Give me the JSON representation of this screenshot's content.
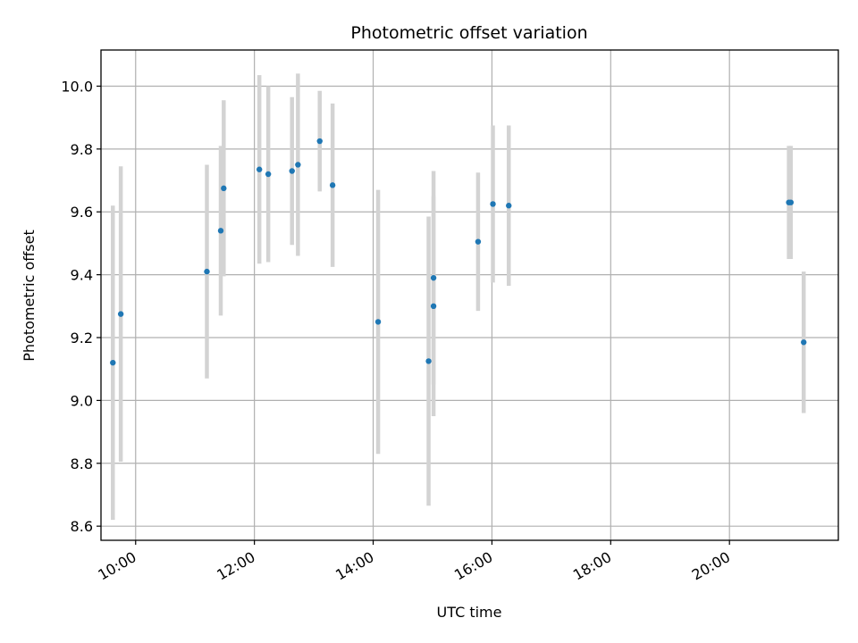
{
  "chart_data": {
    "type": "scatter",
    "title": "Photometric offset variation",
    "xlabel": "UTC time",
    "ylabel": "Photometric offset",
    "xlim": [
      "09:25",
      "21:50"
    ],
    "ylim": [
      8.555,
      10.115
    ],
    "x_ticks": [
      "10:00",
      "12:00",
      "14:00",
      "16:00",
      "18:00",
      "20:00"
    ],
    "y_ticks": [
      "8.6",
      "8.8",
      "9.0",
      "9.2",
      "9.4",
      "9.6",
      "9.8",
      "10.0"
    ],
    "grid": true,
    "legend": "none",
    "colors": {
      "point": "#1f77b4",
      "errorbar": "#d3d3d3",
      "grid": "#b0b0b0"
    },
    "points": [
      {
        "x": "09:37",
        "y": 9.12,
        "yerr": 0.5
      },
      {
        "x": "09:45",
        "y": 9.275,
        "yerr": 0.47
      },
      {
        "x": "11:12",
        "y": 9.41,
        "yerr": 0.34
      },
      {
        "x": "11:26",
        "y": 9.54,
        "yerr": 0.27
      },
      {
        "x": "11:29",
        "y": 9.675,
        "yerr": 0.28
      },
      {
        "x": "12:05",
        "y": 9.735,
        "yerr": 0.3
      },
      {
        "x": "12:14",
        "y": 9.72,
        "yerr": 0.28
      },
      {
        "x": "12:38",
        "y": 9.73,
        "yerr": 0.235
      },
      {
        "x": "12:44",
        "y": 9.75,
        "yerr": 0.29
      },
      {
        "x": "13:06",
        "y": 9.825,
        "yerr": 0.16
      },
      {
        "x": "13:19",
        "y": 9.685,
        "yerr": 0.26
      },
      {
        "x": "14:05",
        "y": 9.25,
        "yerr": 0.42
      },
      {
        "x": "14:56",
        "y": 9.125,
        "yerr": 0.46
      },
      {
        "x": "15:01",
        "y": 9.39,
        "yerr": 0.34
      },
      {
        "x": "15:01",
        "y": 9.3,
        "yerr": 0.35
      },
      {
        "x": "15:46",
        "y": 9.505,
        "yerr": 0.22
      },
      {
        "x": "16:01",
        "y": 9.625,
        "yerr": 0.25
      },
      {
        "x": "16:17",
        "y": 9.62,
        "yerr": 0.255
      },
      {
        "x": "21:00",
        "y": 9.63,
        "yerr": 0.18
      },
      {
        "x": "21:02",
        "y": 9.63,
        "yerr": 0.18
      },
      {
        "x": "21:15",
        "y": 9.185,
        "yerr": 0.225
      }
    ]
  }
}
